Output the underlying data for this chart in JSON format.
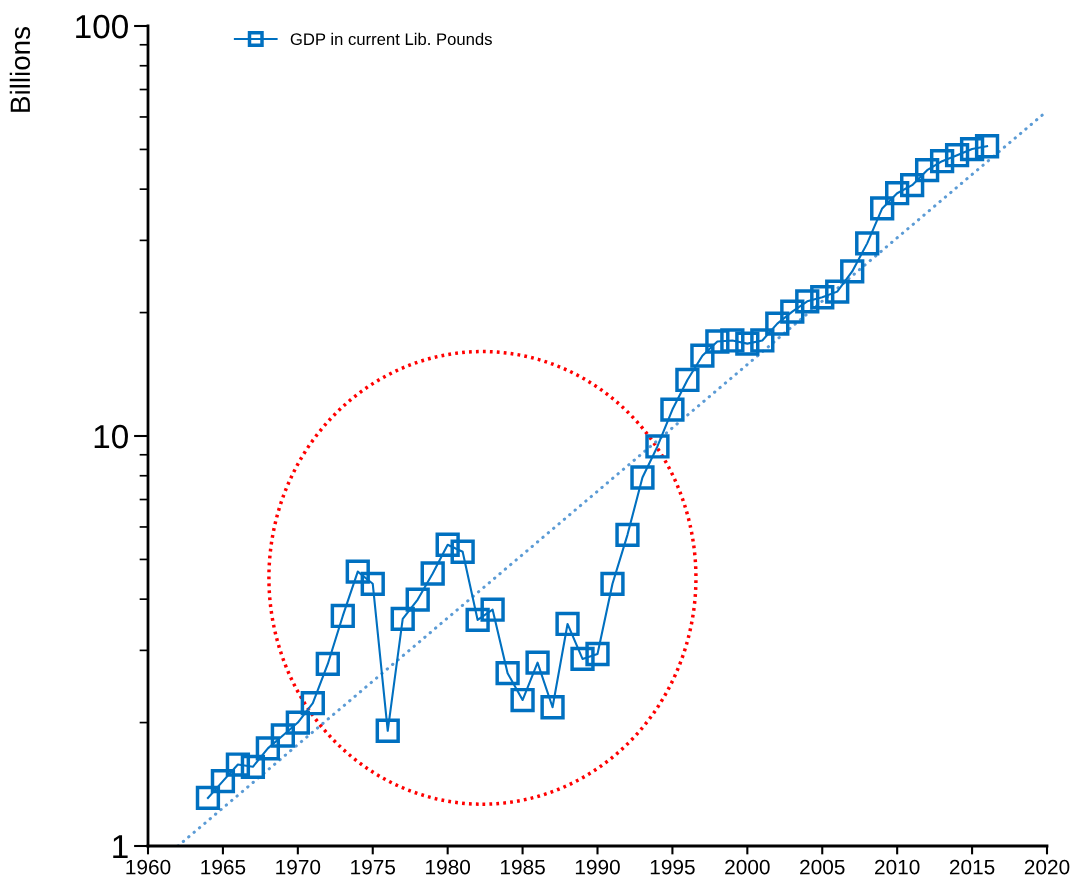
{
  "chart_data": {
    "type": "line",
    "ylabel": "Billions",
    "log": "y",
    "x": [
      1964,
      1965,
      1966,
      1967,
      1968,
      1969,
      1970,
      1971,
      1972,
      1973,
      1974,
      1975,
      1976,
      1977,
      1978,
      1979,
      1980,
      1981,
      1982,
      1983,
      1984,
      1985,
      1986,
      1987,
      1988,
      1989,
      1990,
      1991,
      1992,
      1993,
      1994,
      1995,
      1996,
      1997,
      1998,
      1999,
      2000,
      2001,
      2002,
      2003,
      2004,
      2005,
      2006,
      2007,
      2008,
      2009,
      2010,
      2011,
      2012,
      2013,
      2014,
      2015,
      2016
    ],
    "series": [
      {
        "name": "GDP in current Lib. Pounds",
        "color": "#0070c0",
        "marker": "square",
        "line_style": "solid",
        "values": [
          1.31,
          1.44,
          1.58,
          1.56,
          1.73,
          1.86,
          2.0,
          2.23,
          2.78,
          3.64,
          4.67,
          4.36,
          1.91,
          3.58,
          3.99,
          4.62,
          5.43,
          5.22,
          3.56,
          3.77,
          2.64,
          2.27,
          2.8,
          2.18,
          3.48,
          2.86,
          2.94,
          4.36,
          5.74,
          7.92,
          9.43,
          11.6,
          13.7,
          15.7,
          17.0,
          17.1,
          16.8,
          17.1,
          18.8,
          20.1,
          21.3,
          21.8,
          22.5,
          25.2,
          29.5,
          35.9,
          39.1,
          40.9,
          44.5,
          46.8,
          48.4,
          50.1,
          50.9
        ]
      },
      {
        "type": "line",
        "color": "#5b9bd5",
        "marker": "none",
        "line_style": "dotted",
        "x": [
          1962,
          2020
        ],
        "values": [
          1.0,
          62
        ]
      }
    ],
    "xlim": [
      1960,
      2020
    ],
    "xticks": [
      1960,
      1965,
      1970,
      1975,
      1980,
      1985,
      1990,
      1995,
      2000,
      2005,
      2010,
      2015,
      2020
    ],
    "ylim": [
      1,
      100
    ],
    "yticks": [
      1,
      10,
      100
    ],
    "grid": false,
    "legend": "top left"
  }
}
